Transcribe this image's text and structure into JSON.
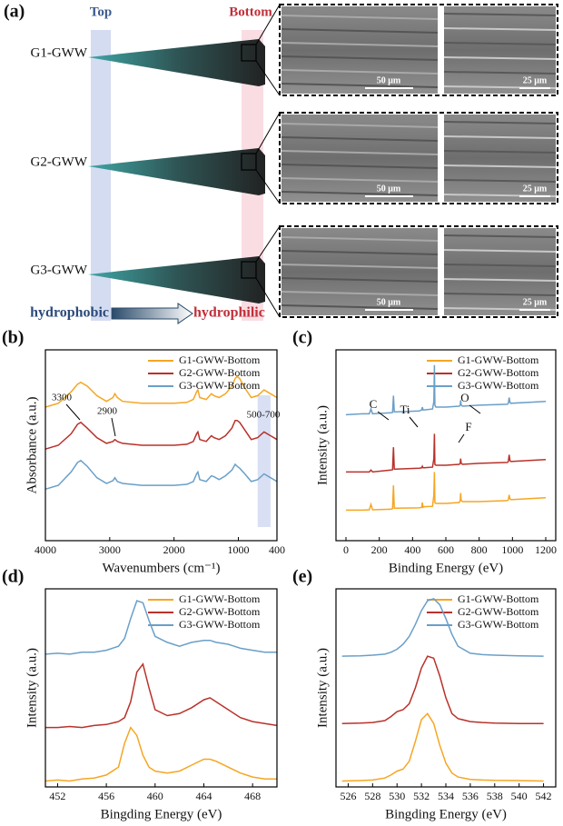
{
  "panel_a": {
    "label": "(a)",
    "top": "Top",
    "bottom": "Bottom",
    "samples": [
      "G1-GWW",
      "G2-GWW",
      "G3-GWW"
    ],
    "scale_bars": [
      [
        "50 μm",
        "25 μm"
      ],
      [
        "50 μm",
        "25 μm"
      ],
      [
        "50 μm",
        "25 μm"
      ]
    ],
    "from": "hydrophobic",
    "to": "hydrophilic"
  },
  "chart_data": [
    {
      "type": "line",
      "label": "(b)",
      "x_label": "Wavenumbers (cm⁻¹)",
      "y_label": "Absorbance (a.u.)",
      "xlim": [
        4000,
        400
      ],
      "xticks": [
        4000,
        3000,
        2000,
        1000,
        400
      ],
      "ylim": [
        0,
        10
      ],
      "legend": "upper right",
      "band": [
        500,
        700
      ],
      "annotations": [
        "3300",
        "2900",
        "500-700"
      ],
      "x": [
        4000,
        3800,
        3600,
        3500,
        3450,
        3350,
        3200,
        3050,
        2950,
        2920,
        2880,
        2800,
        2500,
        2000,
        1800,
        1700,
        1650,
        1630,
        1600,
        1500,
        1420,
        1380,
        1300,
        1200,
        1100,
        1050,
        1020,
        980,
        900,
        800,
        700,
        600,
        500,
        400
      ],
      "series": [
        {
          "name": "G1-GWW-Bottom",
          "color": "#f5a623",
          "values": [
            7.0,
            7.2,
            7.8,
            8.2,
            8.3,
            8.1,
            7.6,
            7.3,
            7.5,
            7.7,
            7.5,
            7.3,
            7.2,
            7.2,
            7.25,
            7.4,
            7.8,
            7.9,
            7.5,
            7.4,
            7.7,
            7.6,
            7.5,
            7.7,
            8.1,
            8.5,
            8.6,
            8.5,
            8.0,
            7.5,
            7.6,
            7.9,
            7.7,
            7.5
          ]
        },
        {
          "name": "G2-GWW-Bottom",
          "color": "#b8322a",
          "values": [
            4.8,
            5.0,
            5.6,
            6.1,
            6.2,
            5.9,
            5.4,
            5.1,
            5.2,
            5.3,
            5.2,
            5.1,
            5.0,
            5.0,
            5.05,
            5.2,
            5.6,
            5.7,
            5.3,
            5.2,
            5.5,
            5.4,
            5.3,
            5.5,
            5.9,
            6.3,
            6.3,
            6.2,
            5.8,
            5.3,
            5.4,
            5.7,
            5.5,
            5.3
          ]
        },
        {
          "name": "G3-GWW-Bottom",
          "color": "#6a9fc8",
          "values": [
            2.7,
            2.9,
            3.6,
            4.1,
            4.2,
            3.9,
            3.3,
            3.0,
            3.15,
            3.3,
            3.1,
            3.0,
            2.9,
            2.9,
            2.95,
            3.1,
            3.5,
            3.6,
            3.2,
            3.1,
            3.4,
            3.35,
            3.2,
            3.4,
            3.7,
            4.0,
            3.9,
            3.8,
            3.5,
            3.1,
            3.2,
            3.5,
            3.3,
            3.1
          ]
        }
      ]
    },
    {
      "type": "line",
      "label": "(c)",
      "x_label": "Binding Energy (eV)",
      "y_label": "Intensity (a.u.)",
      "xlim": [
        -60,
        1260
      ],
      "xticks": [
        0,
        200,
        400,
        600,
        800,
        1000,
        1200
      ],
      "ylim": [
        0,
        10
      ],
      "legend": "upper right",
      "annotations": [
        "C",
        "Ti",
        "O",
        "F"
      ],
      "x": [
        0,
        100,
        140,
        150,
        160,
        270,
        280,
        285,
        290,
        300,
        440,
        455,
        459,
        463,
        470,
        520,
        528,
        531,
        534,
        540,
        600,
        680,
        686,
        689,
        692,
        700,
        800,
        970,
        975,
        980,
        985,
        990,
        1100,
        1200
      ],
      "series": [
        {
          "name": "G1-GWW-Bottom",
          "color": "#f5a623",
          "values": [
            1.6,
            1.6,
            1.62,
            1.9,
            1.62,
            1.65,
            1.68,
            2.9,
            1.7,
            1.7,
            1.72,
            1.75,
            2.0,
            1.75,
            1.78,
            1.8,
            2.4,
            3.6,
            2.0,
            1.95,
            1.95,
            2.0,
            2.1,
            2.5,
            2.1,
            2.05,
            2.05,
            2.1,
            2.15,
            2.4,
            2.2,
            2.15,
            2.2,
            2.25
          ]
        },
        {
          "name": "G2-GWW-Bottom",
          "color": "#b8322a",
          "values": [
            3.6,
            3.6,
            3.6,
            3.7,
            3.6,
            3.7,
            3.72,
            4.9,
            3.75,
            3.75,
            3.8,
            3.82,
            3.9,
            3.82,
            3.82,
            3.85,
            4.3,
            5.6,
            4.0,
            3.95,
            3.95,
            4.0,
            4.05,
            4.3,
            4.05,
            4.0,
            4.05,
            4.1,
            4.15,
            4.5,
            4.2,
            4.15,
            4.2,
            4.25
          ]
        },
        {
          "name": "G3-GWW-Bottom",
          "color": "#6a9fc8",
          "values": [
            6.6,
            6.65,
            6.65,
            6.9,
            6.65,
            6.7,
            6.72,
            7.6,
            6.75,
            6.75,
            6.8,
            6.85,
            7.0,
            6.85,
            6.85,
            6.9,
            7.3,
            9.2,
            7.1,
            7.0,
            7.0,
            7.05,
            7.1,
            7.35,
            7.1,
            7.05,
            7.1,
            7.15,
            7.2,
            7.5,
            7.25,
            7.2,
            7.25,
            7.3
          ]
        }
      ]
    },
    {
      "type": "line",
      "label": "(d)",
      "x_label": "Bingding Energy (eV)",
      "y_label": "Intensity (a.u.)",
      "xlim": [
        451,
        470
      ],
      "xticks": [
        452,
        456,
        460,
        464,
        468
      ],
      "ylim": [
        0,
        10
      ],
      "legend": "upper right",
      "x": [
        451,
        452,
        453,
        454,
        455,
        456,
        457,
        457.5,
        458,
        458.5,
        459,
        459.5,
        460,
        461,
        462,
        463,
        464,
        464.5,
        465,
        466,
        467,
        468,
        469,
        470
      ],
      "series": [
        {
          "name": "G1-GWW-Bottom",
          "color": "#f5a623",
          "values": [
            0.3,
            0.35,
            0.3,
            0.4,
            0.45,
            0.6,
            1.0,
            2.2,
            3.0,
            2.6,
            1.6,
            1.0,
            0.8,
            0.7,
            0.8,
            1.1,
            1.4,
            1.4,
            1.3,
            1.0,
            0.7,
            0.5,
            0.4,
            0.4
          ]
        },
        {
          "name": "G2-GWW-Bottom",
          "color": "#b8322a",
          "values": [
            3.0,
            3.0,
            3.05,
            3.0,
            3.1,
            3.15,
            3.3,
            3.5,
            4.3,
            5.8,
            6.2,
            5.0,
            3.9,
            3.6,
            3.7,
            4.0,
            4.4,
            4.5,
            4.3,
            3.9,
            3.5,
            3.3,
            3.2,
            3.1
          ]
        },
        {
          "name": "G3-GWW-Bottom",
          "color": "#6a9fc8",
          "values": [
            6.7,
            6.75,
            6.7,
            6.8,
            6.8,
            6.9,
            7.1,
            7.5,
            8.5,
            9.4,
            9.3,
            8.4,
            7.6,
            7.3,
            7.1,
            7.3,
            7.4,
            7.4,
            7.3,
            7.2,
            7.0,
            6.9,
            6.8,
            6.8
          ]
        }
      ]
    },
    {
      "type": "line",
      "label": "(e)",
      "x_label": "Bingding Energy (eV)",
      "y_label": "Intensity (a.u.)",
      "xlim": [
        525,
        543
      ],
      "xticks": [
        526,
        528,
        530,
        532,
        534,
        536,
        538,
        540,
        542
      ],
      "ylim": [
        0,
        10
      ],
      "legend": "upper right",
      "x": [
        525.5,
        527,
        528,
        529,
        529.5,
        530,
        530.5,
        531,
        531.5,
        532,
        532.5,
        533,
        533.5,
        534,
        534.5,
        535,
        536,
        537,
        538,
        540,
        542
      ],
      "series": [
        {
          "name": "G1-GWW-Bottom",
          "color": "#f5a623",
          "values": [
            0.3,
            0.32,
            0.35,
            0.45,
            0.6,
            0.8,
            0.9,
            1.3,
            2.3,
            3.4,
            3.7,
            3.2,
            2.1,
            1.2,
            0.7,
            0.5,
            0.38,
            0.35,
            0.33,
            0.32,
            0.3
          ]
        },
        {
          "name": "G2-GWW-Bottom",
          "color": "#b8322a",
          "values": [
            3.2,
            3.22,
            3.25,
            3.35,
            3.55,
            3.8,
            3.9,
            4.2,
            5.0,
            6.0,
            6.6,
            6.5,
            5.6,
            4.5,
            3.7,
            3.45,
            3.3,
            3.25,
            3.22,
            3.2,
            3.2
          ]
        },
        {
          "name": "G3-GWW-Bottom",
          "color": "#6a9fc8",
          "values": [
            6.6,
            6.62,
            6.65,
            6.7,
            6.8,
            6.95,
            7.2,
            7.6,
            8.2,
            8.9,
            9.4,
            9.5,
            9.2,
            8.5,
            7.7,
            7.1,
            6.75,
            6.68,
            6.65,
            6.62,
            6.6
          ]
        }
      ]
    }
  ]
}
